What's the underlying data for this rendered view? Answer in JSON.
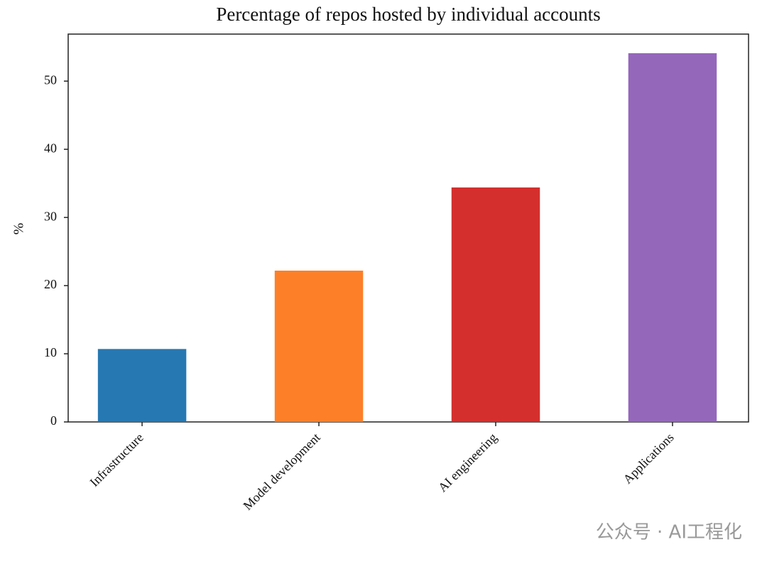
{
  "chart_data": {
    "type": "bar",
    "title": "Percentage of repos hosted by individual accounts",
    "y_label": "%",
    "categories": [
      "Infrastructure",
      "Model development",
      "AI engineering",
      "Applications"
    ],
    "values": [
      10.7,
      22.2,
      34.4,
      54.1
    ],
    "colors": [
      "#2678b2",
      "#fd7f28",
      "#d42f2d",
      "#9467bb"
    ],
    "ylim": [
      0,
      56.9
    ],
    "yticks": [
      0,
      10,
      20,
      30,
      40,
      50
    ],
    "grid": false,
    "watermark": "公众号 · AI工程化"
  }
}
